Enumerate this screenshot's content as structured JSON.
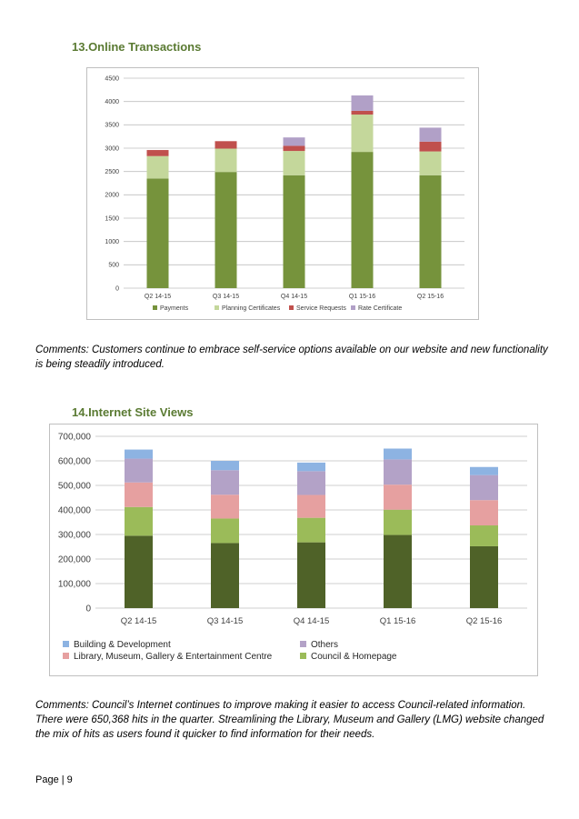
{
  "sections": {
    "online": {
      "heading": "13.Online Transactions",
      "comment": "Comments: Customers continue to embrace self-service options available on our website and new functionality is being steadily introduced."
    },
    "internet": {
      "heading": "14.Internet Site Views",
      "comment": "Comments: Council’s Internet continues to improve making it easier to access Council-related information. There were 650,368 hits in the quarter. Streamlining the Library, Museum and Gallery (LMG) website changed the mix of hits as users found it quicker to find information for their needs."
    }
  },
  "footer": {
    "page_label": "Page | 9"
  },
  "colors": {
    "payments": "#76933c",
    "planning": "#c4d79b",
    "service": "#c0504d",
    "rate": "#b1a0c7",
    "council": "#9bbb59",
    "library": "#e6a0a0",
    "others": "#b3a2c7",
    "building": "#8db3e2",
    "base": "#4f6228"
  },
  "chart_data": [
    {
      "type": "bar",
      "stacked": true,
      "title": "",
      "categories": [
        "Q2 14-15",
        "Q3 14-15",
        "Q4 14-15",
        "Q1 15-16",
        "Q2 15-16"
      ],
      "series": [
        {
          "name": "Payments",
          "color": "#76933c",
          "values": [
            2350,
            2490,
            2420,
            2920,
            2420
          ]
        },
        {
          "name": "Planning Certificates",
          "color": "#c4d79b",
          "values": [
            480,
            500,
            520,
            800,
            510
          ]
        },
        {
          "name": "Service Requests",
          "color": "#c0504d",
          "values": [
            130,
            160,
            110,
            80,
            210
          ]
        },
        {
          "name": "Rate Certificate",
          "color": "#b1a0c7",
          "values": [
            0,
            0,
            180,
            330,
            300
          ]
        }
      ],
      "ylim": [
        0,
        4500
      ],
      "yticks": [
        0,
        500,
        1000,
        1500,
        2000,
        2500,
        3000,
        3500,
        4000,
        4500
      ],
      "ytick_labels": [
        "0",
        "500",
        "1000",
        "1500",
        "2000",
        "2500",
        "3000",
        "3500",
        "4000",
        "4500"
      ],
      "grid": true,
      "legend": "bottom"
    },
    {
      "type": "bar",
      "stacked": true,
      "title": "",
      "categories": [
        "Q2 14-15",
        "Q3 14-15",
        "Q4 14-15",
        "Q1 15-16",
        "Q2 15-16"
      ],
      "series": [
        {
          "name": "Base",
          "color": "#4f6228",
          "values": [
            295000,
            265000,
            268000,
            298000,
            252000
          ],
          "in_legend": false
        },
        {
          "name": "Council & Homepage",
          "color": "#9bbb59",
          "values": [
            117000,
            100000,
            100000,
            103000,
            85000
          ]
        },
        {
          "name": "Library, Museum, Gallery & Entertainment Centre",
          "color": "#e6a0a0",
          "values": [
            100000,
            97000,
            93000,
            102000,
            103000
          ]
        },
        {
          "name": "Others",
          "color": "#b3a2c7",
          "values": [
            97000,
            100000,
            97000,
            103000,
            102000
          ]
        },
        {
          "name": "Building & Development",
          "color": "#8db3e2",
          "values": [
            37000,
            38000,
            35000,
            44000,
            33000
          ]
        }
      ],
      "ylim": [
        0,
        700000
      ],
      "yticks": [
        0,
        100000,
        200000,
        300000,
        400000,
        500000,
        600000,
        700000
      ],
      "ytick_labels": [
        "0",
        "100,000",
        "200,000",
        "300,000",
        "400,000",
        "500,000",
        "600,000",
        "700,000"
      ],
      "legend_order": [
        "Building & Development",
        "Others",
        "Library, Museum, Gallery & Entertainment Centre",
        "Council & Homepage"
      ],
      "grid": true,
      "legend": "bottom"
    }
  ]
}
